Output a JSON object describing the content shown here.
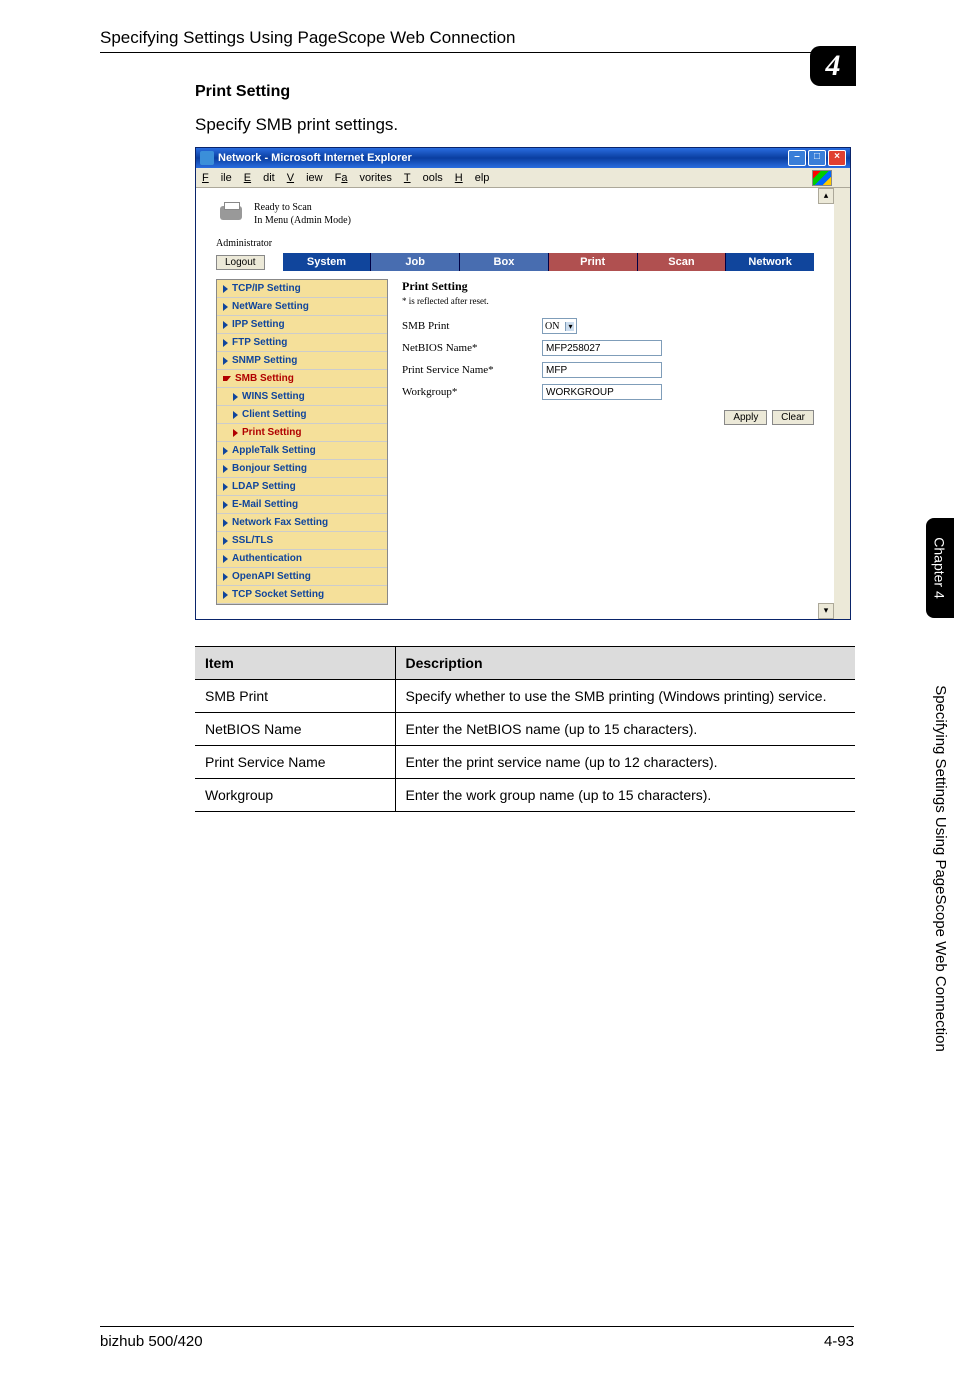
{
  "header": {
    "title": "Specifying Settings Using PageScope Web Connection",
    "chapter_number": "4"
  },
  "section": {
    "heading": "Print Setting",
    "sub": "Specify SMB print settings."
  },
  "window": {
    "title": "Network - Microsoft Internet Explorer",
    "menus": {
      "file": "File",
      "edit": "Edit",
      "view": "View",
      "favorites": "Favorites",
      "tools": "Tools",
      "help": "Help"
    },
    "status_line1": "Ready to Scan",
    "status_line2": "In Menu (Admin Mode)",
    "admin_label": "Administrator",
    "logout": "Logout",
    "tabs": {
      "system": "System",
      "job": "Job",
      "box": "Box",
      "print": "Print",
      "scan": "Scan",
      "network": "Network"
    },
    "sidebar": [
      {
        "label": "TCP/IP Setting",
        "red": false,
        "sub": false
      },
      {
        "label": "NetWare Setting",
        "red": false,
        "sub": false
      },
      {
        "label": "IPP Setting",
        "red": false,
        "sub": false
      },
      {
        "label": "FTP Setting",
        "red": false,
        "sub": false
      },
      {
        "label": "SNMP Setting",
        "red": false,
        "sub": false
      },
      {
        "label": "SMB Setting",
        "red": true,
        "sub": false,
        "expanded": true
      },
      {
        "label": "WINS Setting",
        "red": false,
        "sub": true
      },
      {
        "label": "Client Setting",
        "red": false,
        "sub": true
      },
      {
        "label": "Print Setting",
        "red": true,
        "sub": true
      },
      {
        "label": "AppleTalk Setting",
        "red": false,
        "sub": false
      },
      {
        "label": "Bonjour Setting",
        "red": false,
        "sub": false
      },
      {
        "label": "LDAP Setting",
        "red": false,
        "sub": false
      },
      {
        "label": "E-Mail Setting",
        "red": false,
        "sub": false
      },
      {
        "label": "Network Fax Setting",
        "red": false,
        "sub": false
      },
      {
        "label": "SSL/TLS",
        "red": false,
        "sub": false
      },
      {
        "label": "Authentication",
        "red": false,
        "sub": false
      },
      {
        "label": "OpenAPI Setting",
        "red": false,
        "sub": false
      },
      {
        "label": "TCP Socket Setting",
        "red": false,
        "sub": false
      }
    ],
    "panel": {
      "title": "Print Setting",
      "note": "* is reflected after reset.",
      "smb_print_label": "SMB Print",
      "smb_print_value": "ON",
      "netbios_label": "NetBIOS Name*",
      "netbios_value": "MFP258027",
      "service_label": "Print Service Name*",
      "service_value": "MFP",
      "workgroup_label": "Workgroup*",
      "workgroup_value": "WORKGROUP",
      "apply": "Apply",
      "clear": "Clear"
    }
  },
  "table": {
    "head_item": "Item",
    "head_desc": "Description",
    "rows": [
      {
        "item": "SMB Print",
        "desc": "Specify whether to use the SMB printing (Windows printing) service."
      },
      {
        "item": "NetBIOS Name",
        "desc": "Enter the NetBIOS name (up to 15 characters)."
      },
      {
        "item": "Print Service Name",
        "desc": "Enter the print service name (up to 12 characters)."
      },
      {
        "item": "Workgroup",
        "desc": "Enter the work group name (up to 15 characters)."
      }
    ]
  },
  "side": {
    "chapter": "Chapter 4",
    "caption": "Specifying Settings Using PageScope Web Connection"
  },
  "footer": {
    "left": "bizhub 500/420",
    "right": "4-93"
  },
  "colors": {
    "tab_active": "#10459c",
    "tab_mid": "#486db0",
    "tab_red": "#b05050",
    "sidebar_bg": "#f5e09a",
    "table_header_bg": "#dcdcdc"
  }
}
